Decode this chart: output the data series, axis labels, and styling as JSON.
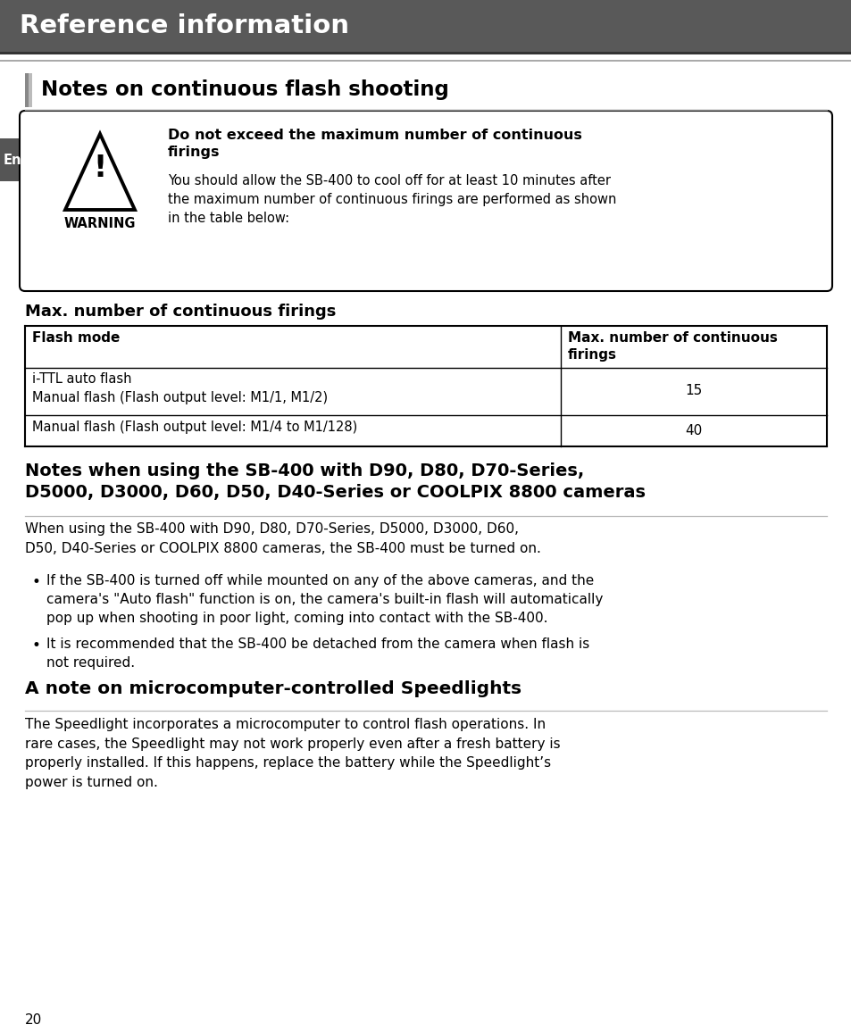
{
  "header_bg": "#595959",
  "header_text": "Reference information",
  "header_text_color": "#ffffff",
  "section1_title": "Notes on continuous flash shooting",
  "section1_title_color": "#000000",
  "en_label_bg": "#555555",
  "en_label_text": "En",
  "en_label_text_color": "#ffffff",
  "warning_box_title": "Do not exceed the maximum number of continuous\nfirings",
  "warning_box_body": "You should allow the SB-400 to cool off for at least 10 minutes after\nthe maximum number of continuous firings are performed as shown\nin the table below:",
  "warning_label": "WARNING",
  "table_section_title": "Max. number of continuous firings",
  "table_col1_header": "Flash mode",
  "table_col2_header": "Max. number of continuous\nfirings",
  "table_row1_col1": "i-TTL auto flash\nManual flash (Flash output level: M1/1, M1/2)",
  "table_row1_col2": "15",
  "table_row2_col1": "Manual flash (Flash output level: M1/4 to M1/128)",
  "table_row2_col2": "40",
  "section2_title": "Notes when using the SB-400 with D90, D80, D70-Series,\nD5000, D3000, D60, D50, D40-Series or COOLPIX 8800 cameras",
  "section2_body": "When using the SB-400 with D90, D80, D70-Series, D5000, D3000, D60,\nD50, D40-Series or COOLPIX 8800 cameras, the SB-400 must be turned on.",
  "section2_bullet1": "If the SB-400 is turned off while mounted on any of the above cameras, and the\ncamera's \"Auto flash\" function is on, the camera's built-in flash will automatically\npop up when shooting in poor light, coming into contact with the SB-400.",
  "section2_bullet2": "It is recommended that the SB-400 be detached from the camera when flash is\nnot required.",
  "section3_title": "A note on microcomputer-controlled Speedlights",
  "section3_body": "The Speedlight incorporates a microcomputer to control flash operations. In\nrare cases, the Speedlight may not work properly even after a fresh battery is\nproperly installed. If this happens, replace the battery while the Speedlight’s\npower is turned on.",
  "page_number": "20",
  "bg_color": "#ffffff",
  "body_text_color": "#000000"
}
